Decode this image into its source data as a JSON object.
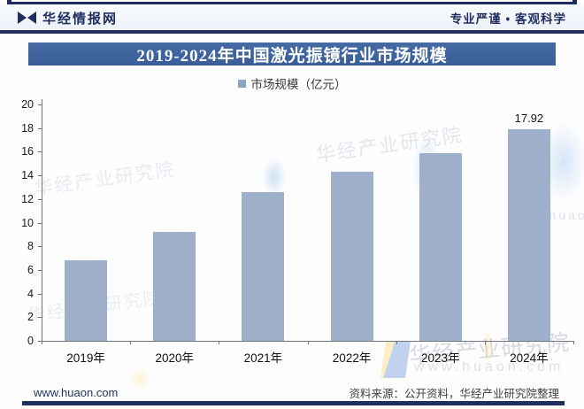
{
  "header": {
    "brand": "华经情报网",
    "slogan": "专业严谨 • 客观科学"
  },
  "title_banner": {
    "text": "2019-2024年中国激光振镜行业市场规模",
    "bg_color": "#3a5f98"
  },
  "legend": {
    "label": "市场规模（亿元）",
    "marker_color": "#8ea3c3"
  },
  "chart_data": {
    "type": "bar",
    "title": "2019-2024年中国激光振镜行业市场规模",
    "series_name": "市场规模",
    "unit": "亿元",
    "categories": [
      "2019年",
      "2020年",
      "2021年",
      "2022年",
      "2023年",
      "2024年"
    ],
    "values": [
      6.8,
      9.2,
      12.55,
      14.3,
      15.9,
      17.92
    ],
    "value_labels": [
      "",
      "",
      "",
      "",
      "",
      "17.92"
    ],
    "ylim": [
      0,
      20
    ],
    "ytick_step": 2,
    "grid": false,
    "legend_position": "top-center",
    "bar_color": "#9fb0cb"
  },
  "watermark": {
    "name": "华经产业研究院",
    "site": "www.huaon.com"
  },
  "footer": {
    "site": "www.huaon.com",
    "source": "资料来源：公开资料，华经产业研究院整理"
  },
  "colors": {
    "navy": "#1f2d5f",
    "banner_blue": "#3a5f98",
    "bar_fill": "#9fb0cb",
    "axis": "#70747b"
  }
}
